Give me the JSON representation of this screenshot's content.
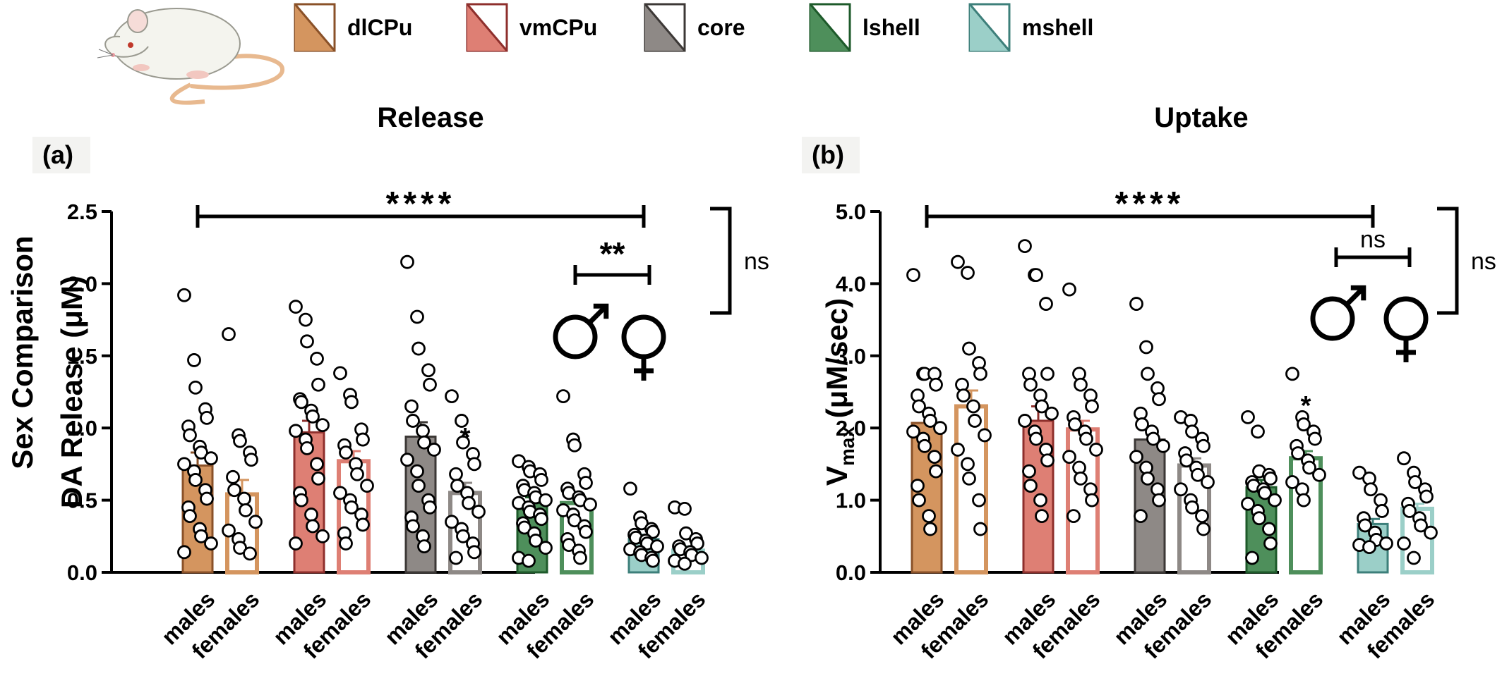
{
  "row_label": "Sex Comparison",
  "colors": {
    "dlCPu": "#d4955f",
    "vmCPu": "#de7f74",
    "core": "#8e8986",
    "lshell": "#4e8f5b",
    "mshell": "#9bcfc8",
    "dlCPu_dark": "#8a5128",
    "vmCPu_dark": "#8e2f2c",
    "core_dark": "#3c3836",
    "lshell_dark": "#1d5a2a",
    "mshell_dark": "#3d7f7a"
  },
  "legend": [
    {
      "key": "dlCPu",
      "label": "dlCPu"
    },
    {
      "key": "vmCPu",
      "label": "vmCPu"
    },
    {
      "key": "core",
      "label": "core"
    },
    {
      "key": "lshell",
      "label": "lshell"
    },
    {
      "key": "mshell",
      "label": "mshell"
    }
  ],
  "chart_data": [
    {
      "panel": "(a)",
      "type": "bar",
      "title": "Release",
      "ylabel": "DA Release (μM)",
      "ylim": [
        0,
        2.5
      ],
      "yticks": [
        "0.0",
        "0.5",
        "1.0",
        "1.5",
        "2.0",
        "2.5"
      ],
      "categories": [
        "males",
        "females"
      ],
      "groups": [
        {
          "region": "dlCPu",
          "bars": [
            {
              "sex": "males",
              "mean": 0.74,
              "sem": 0.09,
              "sig": "",
              "points": [
                1.92,
                1.47,
                1.28,
                1.13,
                1.07,
                1.01,
                0.95,
                0.87,
                0.83,
                0.79,
                0.75,
                0.7,
                0.64,
                0.57,
                0.51,
                0.45,
                0.39,
                0.3,
                0.25,
                0.2,
                0.14
              ]
            },
            {
              "sex": "females",
              "mean": 0.54,
              "sem": 0.1,
              "sig": "",
              "points": [
                1.65,
                0.95,
                0.91,
                0.83,
                0.78,
                0.66,
                0.57,
                0.51,
                0.43,
                0.35,
                0.29,
                0.23,
                0.17,
                0.13
              ]
            }
          ]
        },
        {
          "region": "vmCPu",
          "bars": [
            {
              "sex": "males",
              "mean": 0.97,
              "sem": 0.08,
              "sig": "",
              "points": [
                1.84,
                1.75,
                1.6,
                1.48,
                1.3,
                1.2,
                1.18,
                1.12,
                1.08,
                1.02,
                0.98,
                0.92,
                0.86,
                0.75,
                0.65,
                0.55,
                0.5,
                0.4,
                0.32,
                0.25,
                0.2
              ]
            },
            {
              "sex": "females",
              "mean": 0.77,
              "sem": 0.07,
              "sig": "",
              "points": [
                1.38,
                1.23,
                1.18,
                0.99,
                0.92,
                0.88,
                0.83,
                0.75,
                0.68,
                0.6,
                0.55,
                0.5,
                0.45,
                0.4,
                0.33,
                0.27,
                0.2
              ]
            }
          ]
        },
        {
          "region": "core",
          "bars": [
            {
              "sex": "males",
              "mean": 0.94,
              "sem": 0.1,
              "sig": "",
              "points": [
                2.15,
                1.77,
                1.55,
                1.4,
                1.3,
                1.15,
                1.05,
                0.98,
                0.9,
                0.85,
                0.78,
                0.7,
                0.6,
                0.5,
                0.45,
                0.38,
                0.32,
                0.25,
                0.18
              ]
            },
            {
              "sex": "females",
              "mean": 0.55,
              "sem": 0.07,
              "sig": "*",
              "points": [
                1.22,
                1.05,
                0.9,
                0.82,
                0.75,
                0.68,
                0.6,
                0.55,
                0.48,
                0.42,
                0.35,
                0.3,
                0.25,
                0.2,
                0.14,
                0.1
              ]
            }
          ]
        },
        {
          "region": "lshell",
          "bars": [
            {
              "sex": "males",
              "mean": 0.48,
              "sem": 0.04,
              "sig": "",
              "points": [
                0.77,
                0.73,
                0.7,
                0.68,
                0.64,
                0.6,
                0.57,
                0.55,
                0.52,
                0.5,
                0.48,
                0.45,
                0.42,
                0.4,
                0.37,
                0.34,
                0.31,
                0.27,
                0.22,
                0.17,
                0.1,
                0.08
              ]
            },
            {
              "sex": "females",
              "mean": 0.48,
              "sem": 0.06,
              "sig": "",
              "points": [
                1.22,
                0.92,
                0.88,
                0.68,
                0.62,
                0.58,
                0.55,
                0.52,
                0.5,
                0.47,
                0.43,
                0.4,
                0.36,
                0.32,
                0.28,
                0.23,
                0.19,
                0.15,
                0.1
              ]
            }
          ]
        },
        {
          "region": "mshell",
          "bars": [
            {
              "sex": "males",
              "mean": 0.23,
              "sem": 0.03,
              "sig": "",
              "points": [
                0.58,
                0.38,
                0.34,
                0.3,
                0.28,
                0.26,
                0.24,
                0.22,
                0.2,
                0.18,
                0.16,
                0.14,
                0.12,
                0.1,
                0.08
              ]
            },
            {
              "sex": "females",
              "mean": 0.15,
              "sem": 0.03,
              "sig": "",
              "points": [
                0.45,
                0.44,
                0.27,
                0.23,
                0.2,
                0.18,
                0.16,
                0.14,
                0.12,
                0.1,
                0.08,
                0.06
              ]
            }
          ]
        }
      ],
      "annotations": {
        "overall": "****",
        "sex": "**",
        "ns": "ns"
      }
    },
    {
      "panel": "(b)",
      "type": "bar",
      "title": "Uptake",
      "ylabel": "Vmax (μM/sec)",
      "ylabel_main": "V",
      "ylabel_sub": "max",
      "ylabel_rest": " (μM/sec)",
      "ylim": [
        0,
        5
      ],
      "yticks": [
        "0.0",
        "1.0",
        "2.0",
        "3.0",
        "4.0",
        "5.0"
      ],
      "categories": [
        "males",
        "females"
      ],
      "groups": [
        {
          "region": "dlCPu",
          "bars": [
            {
              "sex": "males",
              "mean": 2.07,
              "sem": 0.17,
              "sig": "",
              "points": [
                4.12,
                2.75,
                2.75,
                2.75,
                2.6,
                2.45,
                2.3,
                2.2,
                2.1,
                2.0,
                1.95,
                1.85,
                1.75,
                1.6,
                1.4,
                1.2,
                1.0,
                0.78,
                0.6
              ]
            },
            {
              "sex": "females",
              "mean": 2.3,
              "sem": 0.22,
              "sig": "",
              "points": [
                4.3,
                4.15,
                3.1,
                2.9,
                2.75,
                2.6,
                2.45,
                2.3,
                2.1,
                1.9,
                1.7,
                1.5,
                1.3,
                1.0,
                0.6
              ]
            }
          ]
        },
        {
          "region": "vmCPu",
          "bars": [
            {
              "sex": "males",
              "mean": 2.1,
              "sem": 0.2,
              "sig": "",
              "points": [
                4.52,
                4.12,
                4.12,
                3.72,
                2.75,
                2.75,
                2.6,
                2.45,
                2.3,
                2.2,
                2.1,
                1.95,
                1.85,
                1.7,
                1.55,
                1.4,
                1.2,
                1.0,
                0.78
              ]
            },
            {
              "sex": "females",
              "mean": 1.98,
              "sem": 0.12,
              "sig": "",
              "points": [
                3.92,
                2.75,
                2.6,
                2.45,
                2.3,
                2.15,
                2.05,
                1.95,
                1.85,
                1.7,
                1.6,
                1.45,
                1.3,
                1.15,
                1.0,
                0.78
              ]
            }
          ]
        },
        {
          "region": "core",
          "bars": [
            {
              "sex": "males",
              "mean": 1.84,
              "sem": 0.16,
              "sig": "",
              "points": [
                3.72,
                3.12,
                2.75,
                2.55,
                2.4,
                2.2,
                2.05,
                1.95,
                1.85,
                1.75,
                1.6,
                1.45,
                1.3,
                1.15,
                1.0,
                0.78
              ]
            },
            {
              "sex": "females",
              "mean": 1.48,
              "sem": 0.1,
              "sig": "",
              "points": [
                2.15,
                2.1,
                1.95,
                1.85,
                1.75,
                1.65,
                1.55,
                1.45,
                1.35,
                1.25,
                1.15,
                1.0,
                0.9,
                0.78,
                0.6
              ]
            }
          ]
        },
        {
          "region": "lshell",
          "bars": [
            {
              "sex": "males",
              "mean": 1.18,
              "sem": 0.1,
              "sig": "",
              "points": [
                2.15,
                1.95,
                1.4,
                1.35,
                1.3,
                1.25,
                1.2,
                1.15,
                1.1,
                1.0,
                0.95,
                0.85,
                0.75,
                0.6,
                0.4,
                0.2
              ]
            },
            {
              "sex": "females",
              "mean": 1.58,
              "sem": 0.1,
              "sig": "*",
              "points": [
                2.75,
                2.15,
                2.05,
                1.95,
                1.85,
                1.75,
                1.65,
                1.55,
                1.45,
                1.35,
                1.25,
                1.15,
                1.0
              ]
            }
          ]
        },
        {
          "region": "mshell",
          "bars": [
            {
              "sex": "males",
              "mean": 0.67,
              "sem": 0.07,
              "sig": "",
              "points": [
                1.38,
                1.3,
                1.15,
                1.0,
                0.85,
                0.75,
                0.65,
                0.55,
                0.45,
                0.4,
                0.38,
                0.35
              ]
            },
            {
              "sex": "females",
              "mean": 0.88,
              "sem": 0.07,
              "sig": "",
              "points": [
                1.58,
                1.38,
                1.25,
                1.15,
                1.05,
                0.95,
                0.85,
                0.75,
                0.65,
                0.55,
                0.4,
                0.2
              ]
            }
          ]
        }
      ],
      "annotations": {
        "overall": "****",
        "sex": "ns",
        "ns": "ns"
      }
    }
  ]
}
